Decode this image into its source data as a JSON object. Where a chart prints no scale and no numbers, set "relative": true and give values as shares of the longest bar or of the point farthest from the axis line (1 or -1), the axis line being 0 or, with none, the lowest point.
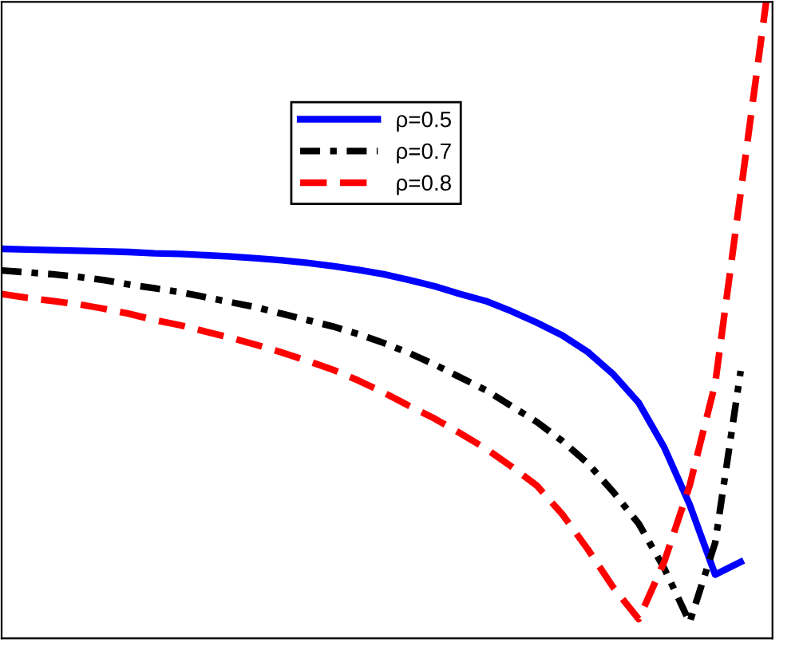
{
  "chart_data": {
    "type": "line",
    "relative": true,
    "tick_labels": false,
    "legend": "top right",
    "categories": [
      null,
      null,
      null,
      null,
      null,
      null,
      null,
      null,
      null,
      null,
      null,
      null,
      null,
      null,
      null,
      null,
      null,
      null,
      null,
      null,
      null,
      null,
      null,
      null,
      null,
      null,
      null,
      null,
      null,
      null,
      null
    ],
    "series": [
      {
        "name": "ρ=0.5",
        "color": "#0000ff",
        "line_style": "solid",
        "values": [
          0.612,
          0.611,
          0.61,
          0.609,
          0.608,
          0.607,
          0.605,
          0.604,
          0.602,
          0.6,
          0.597,
          0.594,
          0.59,
          0.585,
          0.579,
          0.572,
          0.563,
          0.553,
          0.541,
          0.53,
          0.514,
          0.496,
          0.476,
          0.45,
          0.415,
          0.37,
          0.3,
          0.21,
          0.1,
          0.12,
          null
        ]
      },
      {
        "name": "ρ=0.7",
        "color": "#000000",
        "line_style": "dashdot",
        "values": [
          0.578,
          0.575,
          0.572,
          0.568,
          0.563,
          0.556,
          0.55,
          0.544,
          0.536,
          0.528,
          0.52,
          0.51,
          0.5,
          0.49,
          0.478,
          0.464,
          0.448,
          0.43,
          0.41,
          0.39,
          0.365,
          0.34,
          0.31,
          0.275,
          0.23,
          0.18,
          0.11,
          0.025,
          0.15,
          0.42,
          null
        ]
      },
      {
        "name": "ρ=0.8",
        "color": "#ff0000",
        "line_style": "dashed",
        "values": [
          0.541,
          0.535,
          0.53,
          0.525,
          0.518,
          0.51,
          0.5,
          0.492,
          0.482,
          0.472,
          0.461,
          0.449,
          0.436,
          0.422,
          0.405,
          0.386,
          0.365,
          0.345,
          0.322,
          0.298,
          0.27,
          0.24,
          0.195,
          0.14,
          0.08,
          0.03,
          0.12,
          0.24,
          0.4,
          0.7,
          1.0
        ]
      }
    ]
  }
}
